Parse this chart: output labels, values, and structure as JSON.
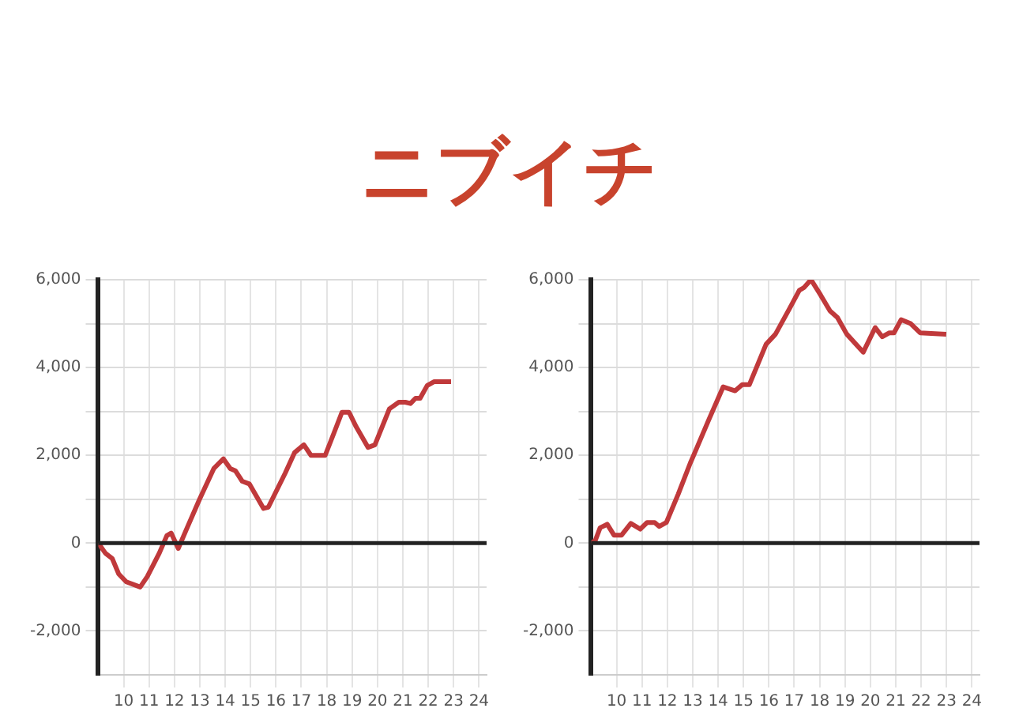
{
  "chart_data": [
    {
      "type": "line",
      "title": "ニブイチ",
      "x": [
        9,
        9.28,
        9.55,
        9.8,
        10.1,
        10.65,
        10.93,
        11.4,
        11.7,
        11.87,
        12.15,
        12.5,
        12.99,
        13.55,
        13.93,
        14.2,
        14.4,
        14.67,
        14.95,
        15.51,
        15.7,
        16.36,
        16.73,
        17.1,
        17.38,
        17.94,
        18.3,
        18.6,
        18.88,
        19.16,
        19.63,
        19.9,
        20.47,
        20.84,
        21.1,
        21.3,
        21.5,
        21.68,
        21.96,
        22.24,
        22.9
      ],
      "series": [
        {
          "color": "#c0393b",
          "values": [
            0,
            -230,
            -350,
            -700,
            -880,
            -1000,
            -760,
            -230,
            170,
            230,
            -120,
            350,
            1000,
            1700,
            1920,
            1700,
            1650,
            1410,
            1350,
            790,
            820,
            1590,
            2060,
            2240,
            2000,
            2000,
            2530,
            2980,
            2980,
            2650,
            2180,
            2240,
            3060,
            3210,
            3210,
            3180,
            3300,
            3300,
            3590,
            3680,
            3680
          ]
        }
      ],
      "xlim": [
        9,
        24.3
      ],
      "xticks": [
        10,
        11,
        12,
        13,
        14,
        15,
        16,
        17,
        18,
        19,
        20,
        21,
        22,
        23,
        24
      ],
      "ylim": [
        -3000,
        6000
      ],
      "yticks": [
        {
          "value": -2000,
          "label": "-2,000"
        },
        {
          "value": -1000,
          "label": null
        },
        {
          "value": 0,
          "label": "0"
        },
        {
          "value": 1000,
          "label": null
        },
        {
          "value": 2000,
          "label": "2,000"
        },
        {
          "value": 3000,
          "label": null
        },
        {
          "value": 4000,
          "label": "4,000"
        },
        {
          "value": 5000,
          "label": null
        },
        {
          "value": 6000,
          "label": "6,000"
        }
      ],
      "grid": true,
      "legend": false,
      "marker": "none",
      "line_style": "solid",
      "ref_lines": [
        {
          "axis": "y",
          "value": 0,
          "color": "#222222"
        }
      ]
    },
    {
      "type": "line",
      "x": [
        9,
        9.16,
        9.35,
        9.63,
        9.9,
        10.19,
        10.56,
        10.93,
        11.2,
        11.5,
        11.68,
        11.96,
        12.43,
        12.9,
        13.08,
        13.64,
        14.2,
        14.67,
        14.95,
        15.23,
        15.89,
        16.26,
        16.82,
        17.2,
        17.38,
        17.66,
        18.04,
        18.41,
        18.7,
        19.07,
        19.72,
        20.19,
        20.47,
        20.75,
        20.93,
        21.21,
        21.59,
        21.96,
        22.99
      ],
      "series": [
        {
          "color": "#c0393b",
          "values": [
            0,
            60,
            350,
            430,
            180,
            180,
            450,
            320,
            470,
            470,
            380,
            470,
            1120,
            1820,
            2060,
            2820,
            3560,
            3470,
            3610,
            3610,
            4530,
            4760,
            5350,
            5760,
            5820,
            6000,
            5650,
            5290,
            5140,
            4760,
            4350,
            4910,
            4700,
            4790,
            4790,
            5090,
            5000,
            4790,
            4760
          ]
        }
      ],
      "xlim": [
        9,
        24.3
      ],
      "xticks": [
        10,
        11,
        12,
        13,
        14,
        15,
        16,
        17,
        18,
        19,
        20,
        21,
        22,
        23,
        24
      ],
      "ylim": [
        -3000,
        6000
      ],
      "yticks": [
        {
          "value": -2000,
          "label": "-2,000"
        },
        {
          "value": -1000,
          "label": null
        },
        {
          "value": 0,
          "label": "0"
        },
        {
          "value": 1000,
          "label": null
        },
        {
          "value": 2000,
          "label": "2,000"
        },
        {
          "value": 3000,
          "label": null
        },
        {
          "value": 4000,
          "label": "4,000"
        },
        {
          "value": 5000,
          "label": null
        },
        {
          "value": 6000,
          "label": "6,000"
        }
      ],
      "grid": true,
      "legend": false,
      "marker": "none",
      "line_style": "solid",
      "ref_lines": [
        {
          "axis": "y",
          "value": 0,
          "color": "#222222"
        }
      ]
    }
  ]
}
